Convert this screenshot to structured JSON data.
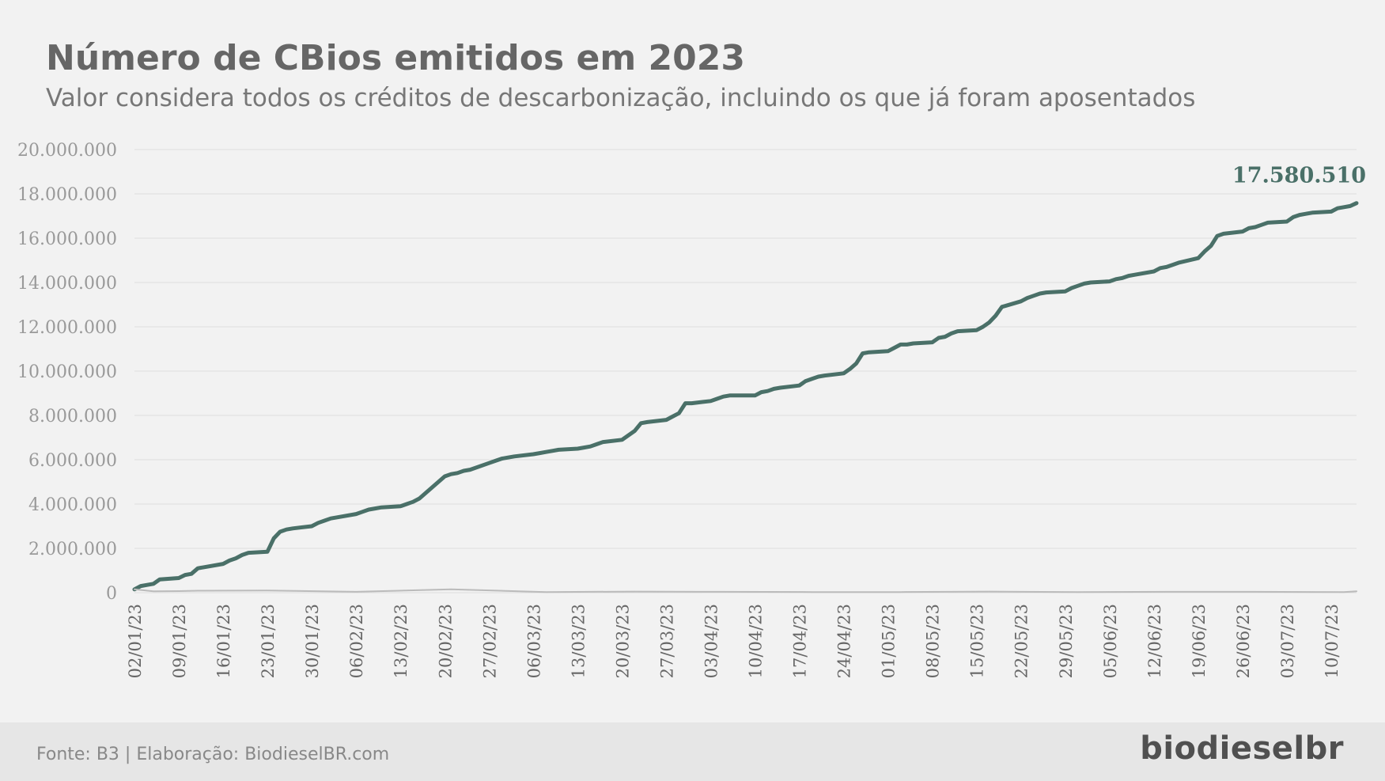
{
  "chart_data": {
    "type": "line",
    "title": "Número de CBios emitidos em 2023",
    "subtitle": "Valor considera todos os créditos de descarbonização, incluindo os que já foram aposentados",
    "ylim": [
      0,
      20000000
    ],
    "y_ticks": [
      "0",
      "2.000.000",
      "4.000.000",
      "6.000.000",
      "8.000.000",
      "10.000.000",
      "12.000.000",
      "14.000.000",
      "16.000.000",
      "18.000.000",
      "20.000.000"
    ],
    "x_tick_labels": [
      "02/01/23",
      "09/01/23",
      "16/01/23",
      "23/01/23",
      "30/01/23",
      "06/02/23",
      "13/02/23",
      "20/02/23",
      "27/02/23",
      "06/03/23",
      "13/03/23",
      "20/03/23",
      "27/03/23",
      "03/04/23",
      "10/04/23",
      "17/04/23",
      "24/04/23",
      "01/05/23",
      "08/05/23",
      "15/05/23",
      "22/05/23",
      "29/05/23",
      "05/06/23",
      "12/06/23",
      "19/06/23",
      "26/06/23",
      "03/07/23",
      "10/07/23"
    ],
    "grid": true,
    "last_value_label": "17.580.510",
    "colors": {
      "cumulative": "#4a7068",
      "daily": "#bbbbbb",
      "grid": "#dddddd",
      "axis_text": "#999999"
    },
    "series": [
      {
        "key": "cumulative",
        "x": [
          "2023-01-02",
          "2023-01-03",
          "2023-01-04",
          "2023-01-05",
          "2023-01-06",
          "2023-01-09",
          "2023-01-10",
          "2023-01-11",
          "2023-01-12",
          "2023-01-13",
          "2023-01-16",
          "2023-01-17",
          "2023-01-18",
          "2023-01-19",
          "2023-01-20",
          "2023-01-23",
          "2023-01-24",
          "2023-01-25",
          "2023-01-26",
          "2023-01-27",
          "2023-01-30",
          "2023-01-31",
          "2023-02-01",
          "2023-02-02",
          "2023-02-03",
          "2023-02-06",
          "2023-02-07",
          "2023-02-08",
          "2023-02-09",
          "2023-02-10",
          "2023-02-13",
          "2023-02-14",
          "2023-02-15",
          "2023-02-16",
          "2023-02-17",
          "2023-02-20",
          "2023-02-21",
          "2023-02-22",
          "2023-02-23",
          "2023-02-24",
          "2023-02-27",
          "2023-02-28",
          "2023-03-01",
          "2023-03-02",
          "2023-03-03",
          "2023-03-06",
          "2023-03-07",
          "2023-03-08",
          "2023-03-09",
          "2023-03-10",
          "2023-03-13",
          "2023-03-14",
          "2023-03-15",
          "2023-03-16",
          "2023-03-17",
          "2023-03-20",
          "2023-03-21",
          "2023-03-22",
          "2023-03-23",
          "2023-03-24",
          "2023-03-27",
          "2023-03-28",
          "2023-03-29",
          "2023-03-30",
          "2023-03-31",
          "2023-04-03",
          "2023-04-04",
          "2023-04-05",
          "2023-04-06",
          "2023-04-07",
          "2023-04-10",
          "2023-04-11",
          "2023-04-12",
          "2023-04-13",
          "2023-04-14",
          "2023-04-17",
          "2023-04-18",
          "2023-04-19",
          "2023-04-20",
          "2023-04-21",
          "2023-04-24",
          "2023-04-25",
          "2023-04-26",
          "2023-04-27",
          "2023-04-28",
          "2023-05-01",
          "2023-05-02",
          "2023-05-03",
          "2023-05-04",
          "2023-05-05",
          "2023-05-08",
          "2023-05-09",
          "2023-05-10",
          "2023-05-11",
          "2023-05-12",
          "2023-05-15",
          "2023-05-16",
          "2023-05-17",
          "2023-05-18",
          "2023-05-19",
          "2023-05-22",
          "2023-05-23",
          "2023-05-24",
          "2023-05-25",
          "2023-05-26",
          "2023-05-29",
          "2023-05-30",
          "2023-05-31",
          "2023-06-01",
          "2023-06-02",
          "2023-06-05",
          "2023-06-06",
          "2023-06-07",
          "2023-06-08",
          "2023-06-09",
          "2023-06-12",
          "2023-06-13",
          "2023-06-14",
          "2023-06-15",
          "2023-06-16",
          "2023-06-19",
          "2023-06-20",
          "2023-06-21",
          "2023-06-22",
          "2023-06-23",
          "2023-06-26",
          "2023-06-27",
          "2023-06-28",
          "2023-06-29",
          "2023-06-30",
          "2023-07-03",
          "2023-07-04",
          "2023-07-05",
          "2023-07-06",
          "2023-07-07",
          "2023-07-10",
          "2023-07-11",
          "2023-07-12",
          "2023-07-13",
          "2023-07-14"
        ],
        "values": [
          150000,
          300000,
          350000,
          400000,
          600000,
          660000,
          800000,
          850000,
          1100000,
          1150000,
          1300000,
          1450000,
          1550000,
          1700000,
          1800000,
          1850000,
          2450000,
          2750000,
          2850000,
          2900000,
          3000000,
          3150000,
          3250000,
          3350000,
          3400000,
          3550000,
          3650000,
          3750000,
          3800000,
          3850000,
          3900000,
          4000000,
          4100000,
          4250000,
          4500000,
          5250000,
          5350000,
          5400000,
          5500000,
          5550000,
          5850000,
          5950000,
          6050000,
          6100000,
          6150000,
          6250000,
          6300000,
          6350000,
          6400000,
          6450000,
          6500000,
          6550000,
          6600000,
          6700000,
          6800000,
          6900000,
          7100000,
          7300000,
          7650000,
          7700000,
          7800000,
          7950000,
          8100000,
          8550000,
          8550000,
          8650000,
          8750000,
          8850000,
          8900000,
          8900000,
          8900000,
          9050000,
          9100000,
          9200000,
          9250000,
          9350000,
          9550000,
          9650000,
          9750000,
          9800000,
          9900000,
          10100000,
          10350000,
          10800000,
          10850000,
          10900000,
          11050000,
          11200000,
          11200000,
          11250000,
          11300000,
          11500000,
          11550000,
          11700000,
          11800000,
          11850000,
          12000000,
          12200000,
          12500000,
          12900000,
          13150000,
          13300000,
          13400000,
          13500000,
          13550000,
          13600000,
          13750000,
          13850000,
          13950000,
          14000000,
          14050000,
          14150000,
          14200000,
          14300000,
          14350000,
          14500000,
          14650000,
          14700000,
          14800000,
          14900000,
          15100000,
          15400000,
          15650000,
          16100000,
          16200000,
          16300000,
          16450000,
          16500000,
          16600000,
          16700000,
          16750000,
          16950000,
          17050000,
          17100000,
          17150000,
          17200000,
          17350000,
          17400000,
          17450000,
          17580510
        ]
      },
      {
        "key": "daily",
        "x": [
          "2023-01-02",
          "2023-01-05",
          "2023-01-09",
          "2023-01-12",
          "2023-01-23",
          "2023-02-06",
          "2023-02-21",
          "2023-03-08",
          "2023-03-22",
          "2023-04-05",
          "2023-04-19",
          "2023-05-03",
          "2023-05-17",
          "2023-05-31",
          "2023-06-14",
          "2023-06-28",
          "2023-07-12",
          "2023-07-14"
        ],
        "values": [
          150000,
          60000,
          70000,
          90000,
          100000,
          40000,
          150000,
          30000,
          50000,
          40000,
          30000,
          30000,
          50000,
          30000,
          40000,
          40000,
          30000,
          60000
        ]
      }
    ]
  },
  "footer": {
    "source": "Fonte: B3 | Elaboração: BiodieselBR.com",
    "logo": "biodieselbr"
  }
}
